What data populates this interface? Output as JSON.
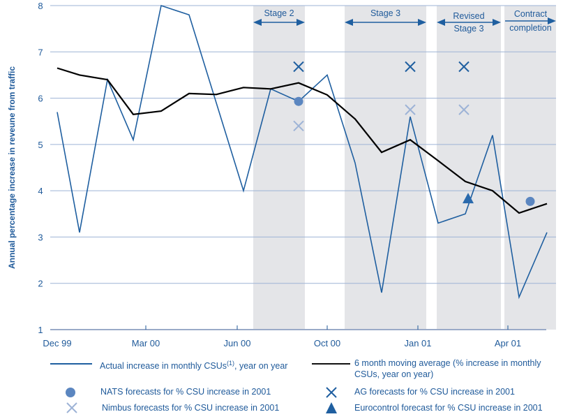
{
  "chart_data": {
    "type": "line",
    "title": "",
    "xlabel": "",
    "ylabel": "Annual percentage increase in reveune from traffic",
    "ylim": [
      1,
      8
    ],
    "yticks": [
      1,
      2,
      3,
      4,
      5,
      6,
      7,
      8
    ],
    "xtick_labels": [
      "Dec 99",
      "Mar 00",
      "Jun 00",
      "Oct 00",
      "Jan 01",
      "Apr 01"
    ],
    "grid": true,
    "x": [
      "Dec 99",
      "Jan 00",
      "Feb 00",
      "Mar 00",
      "Apr 00",
      "May 00",
      "Jun 00",
      "Jul 00",
      "Aug 00",
      "Sep 00",
      "Oct 00",
      "Nov 00",
      "Dec 00",
      "Jan 01",
      "Feb 01",
      "Mar 01",
      "Apr 01",
      "May 01",
      "Jun 01"
    ],
    "series": [
      {
        "name": "Actual increase in monthly CSUs(1), year on year",
        "color": "#1f5fa0",
        "values": [
          5.7,
          3.1,
          6.4,
          5.1,
          8.0,
          7.8,
          null,
          4.0,
          6.2,
          5.93,
          6.5,
          4.6,
          1.8,
          5.6,
          3.3,
          3.5,
          5.2,
          1.7,
          3.1
        ]
      },
      {
        "name": "6 month moving average (% increase in monthly CSUs, year on year)",
        "color": "#000000",
        "values": [
          6.65,
          6.5,
          6.4,
          5.65,
          5.72,
          6.1,
          6.08,
          6.23,
          6.2,
          6.33,
          6.07,
          5.55,
          4.83,
          5.1,
          4.65,
          4.2,
          4.0,
          3.52,
          3.72
        ]
      }
    ],
    "markers": [
      {
        "name": "NATS forecasts for % CSU increase in 2001",
        "shape": "circle",
        "color": "#5b86c0",
        "points": [
          {
            "x": "Sep 00",
            "y": 5.93
          },
          {
            "x": "May 01",
            "y": 3.77
          }
        ]
      },
      {
        "name": "AG forecasts for % CSU increase in 2001",
        "shape": "x",
        "color": "#1f5fa0",
        "points": [
          {
            "x": "Sep 00",
            "y": 6.68
          },
          {
            "x": "Jan 01",
            "y": 6.68
          },
          {
            "x": "Mar 01",
            "y": 6.68
          }
        ]
      },
      {
        "name": "Nimbus forecasts for % CSU increase in 2001",
        "shape": "x",
        "color": "#9db3d6",
        "points": [
          {
            "x": "Sep 00",
            "y": 5.4
          },
          {
            "x": "Jan 01",
            "y": 5.75
          },
          {
            "x": "Mar 01",
            "y": 5.75
          }
        ]
      },
      {
        "name": "Eurocontrol forecast for % CSU increase in 2001",
        "shape": "triangle",
        "color": "#2a6aad",
        "points": [
          {
            "x": "Mar 01",
            "y": 3.82
          }
        ]
      }
    ],
    "shaded_regions": [
      {
        "label": [
          "Stage 2"
        ],
        "from": "Jul 00",
        "to": "Sep 00"
      },
      {
        "label": [
          "Stage 3"
        ],
        "from": "Oct 00",
        "to": "Jan 01"
      },
      {
        "label": [
          "Revised",
          "Stage 3"
        ],
        "from": "Feb 01",
        "to": "Apr 01"
      },
      {
        "label": [
          "Contract",
          "completion"
        ],
        "from": "Apr 01",
        "to": "Jun 01"
      }
    ],
    "legend_position": "bottom",
    "colors": {
      "axis_text": "#1f5a9a",
      "grid": "#9db3d6",
      "shade": "#e4e5e8"
    }
  },
  "legend": {
    "actual": "Actual increase in monthly CSUs",
    "actual_sup": "(1)",
    "actual_tail": ", year on year",
    "moving_avg_line1": "6 month moving average (% increase in monthly",
    "moving_avg_line2": "CSUs, year on year)",
    "nats": "NATS forecasts for % CSU increase in 2001",
    "ag": "AG forecasts for % CSU increase in 2001",
    "nimbus": "Nimbus forecasts for % CSU increase in 2001",
    "eurocontrol": "Eurocontrol forecast for % CSU increase in 2001"
  }
}
